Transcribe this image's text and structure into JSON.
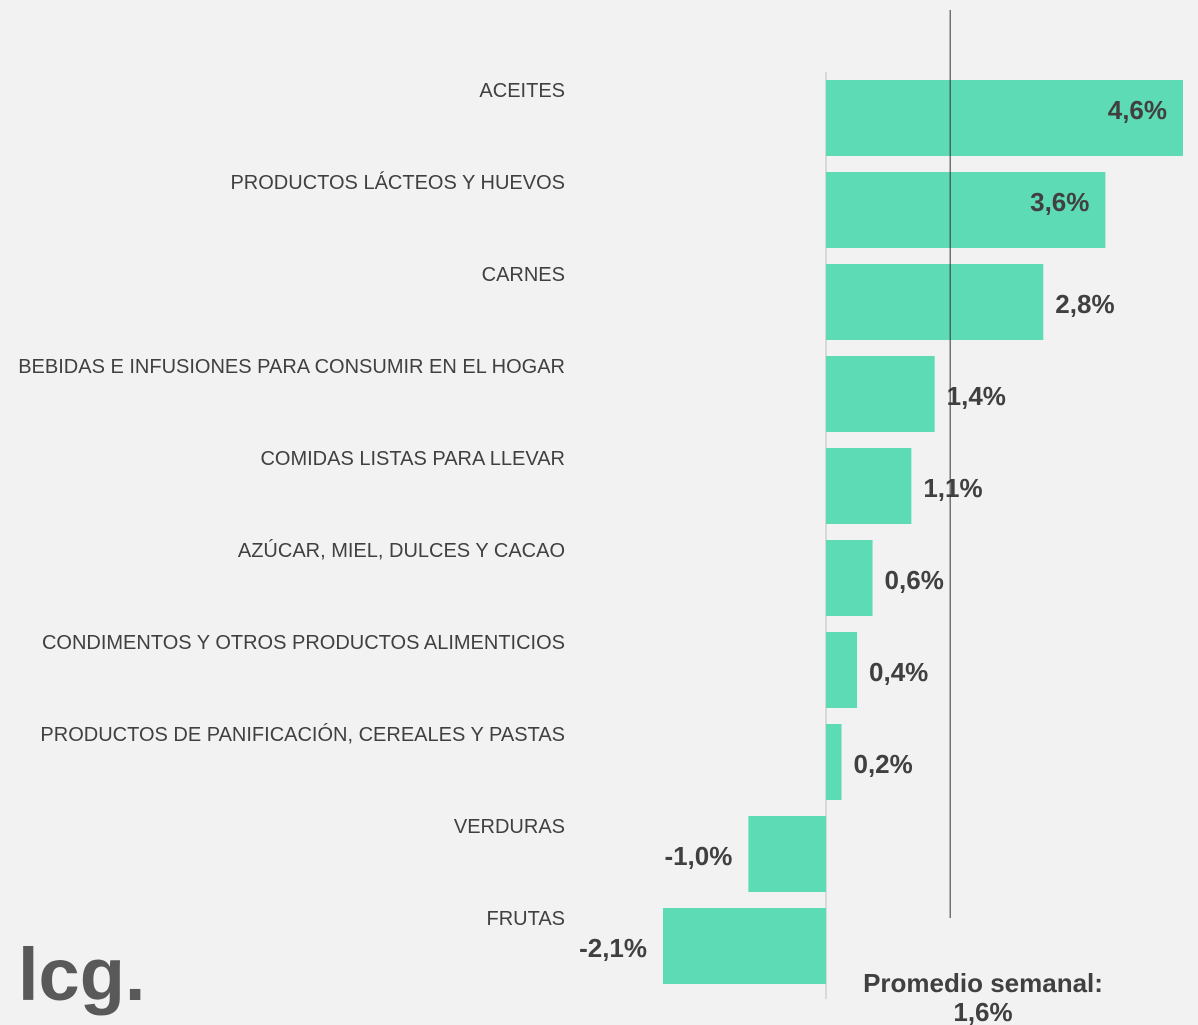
{
  "chart_data": {
    "type": "barh",
    "categories": [
      "ACEITES",
      "PRODUCTOS LÁCTEOS Y HUEVOS",
      "CARNES",
      "BEBIDAS E INFUSIONES PARA CONSUMIR EN EL HOGAR",
      "COMIDAS LISTAS PARA LLEVAR",
      "AZÚCAR, MIEL, DULCES Y CACAO",
      "CONDIMENTOS Y OTROS PRODUCTOS ALIMENTICIOS",
      "PRODUCTOS DE PANIFICACIÓN, CEREALES Y PASTAS",
      "VERDURAS",
      "FRUTAS"
    ],
    "values": [
      4.6,
      3.6,
      2.8,
      1.4,
      1.1,
      0.6,
      0.4,
      0.2,
      -1.0,
      -2.1
    ],
    "value_labels": [
      "4,6%",
      "3,6%",
      "2,8%",
      "1,4%",
      "1,1%",
      "0,6%",
      "0,4%",
      "0,2%",
      "-1,0%",
      "-2,1%"
    ],
    "color": "#5ddbb4",
    "xlim": [
      -2.1,
      4.6
    ],
    "average": {
      "value": 1.6,
      "label": "Promedio semanal:",
      "value_label": "1,6%"
    },
    "logo": "lcg."
  }
}
